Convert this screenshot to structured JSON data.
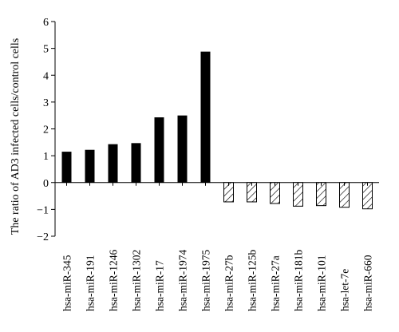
{
  "chart_data": {
    "type": "bar",
    "title": "",
    "xlabel": "",
    "ylabel": "The ratio of AD3 infected cells/control cells",
    "ylim": [
      -2,
      6
    ],
    "yticks": [
      -2,
      -1,
      0,
      1,
      2,
      3,
      4,
      5,
      6
    ],
    "grid": false,
    "legend": "none",
    "categories": [
      "hsa-miR-345",
      "hsa-miR-191",
      "hsa-miR-1246",
      "hsa-miR-1302",
      "hsa-miR-17",
      "hsa-miR-1974",
      "hsa-miR-1975",
      "hsa-miR-27b",
      "hsa-miR-125b",
      "hsa-miR-27a",
      "hsa-miR-181b",
      "hsa-miR-101",
      "hsa-let-7e",
      "hsa-miR-660"
    ],
    "values": [
      1.15,
      1.22,
      1.43,
      1.47,
      2.43,
      2.5,
      4.88,
      -0.72,
      -0.72,
      -0.78,
      -0.88,
      -0.86,
      -0.92,
      -0.98
    ],
    "colors": {
      "up": "#000000",
      "down_hatch": "#000000",
      "axis": "#000000"
    }
  }
}
